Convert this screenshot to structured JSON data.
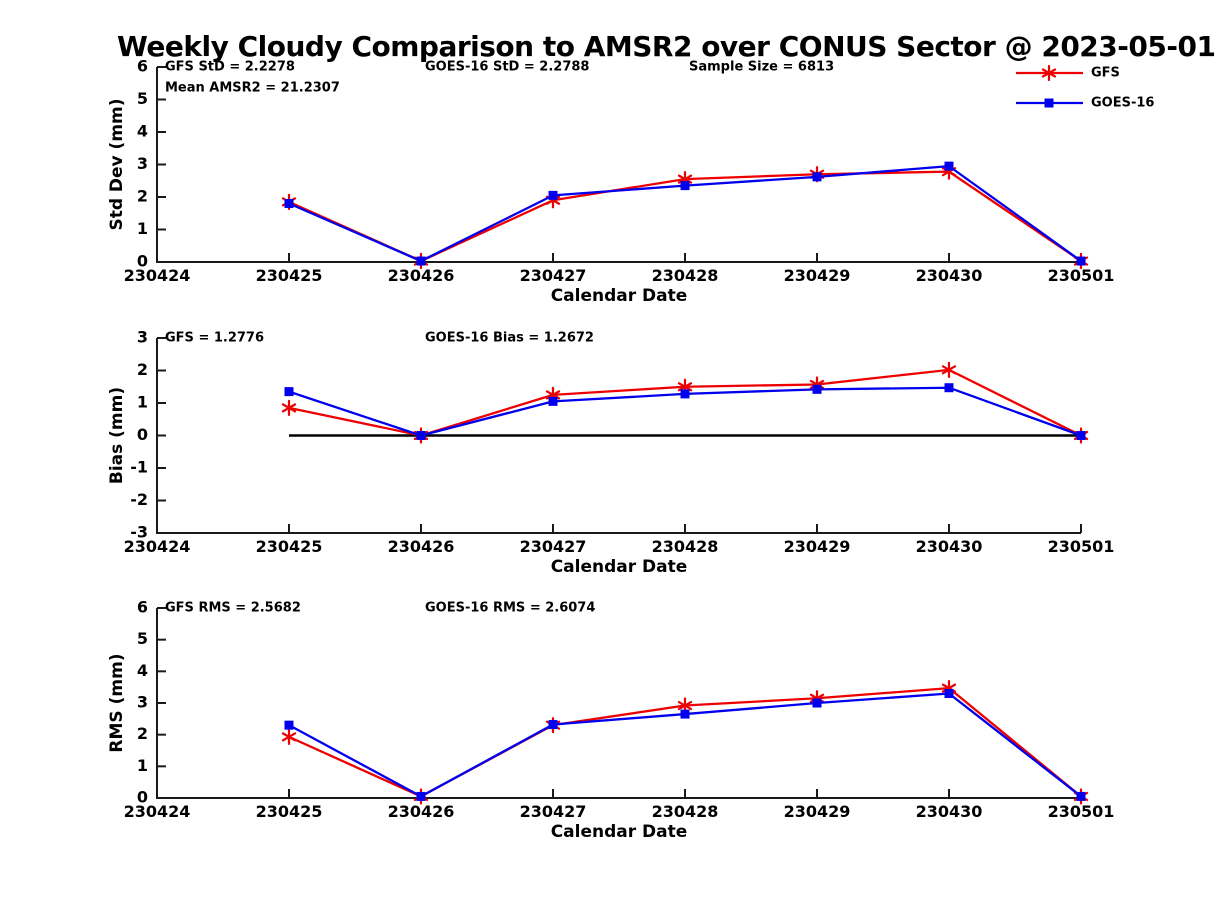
{
  "title": "Weekly Cloudy Comparison to AMSR2 over CONUS Sector @ 2023-05-01",
  "colors": {
    "gfs": "#ee0000",
    "goes16": "#0000ee",
    "axis": "#1a1a1a",
    "text": "#000000",
    "zero_line": "#000000"
  },
  "chart_data": [
    {
      "type": "line",
      "name": "std-dev",
      "ylabel": "Std Dev (mm)",
      "xlabel": "Calendar Date",
      "ylim": [
        0,
        6
      ],
      "ytick_step": 1,
      "grid": false,
      "legend_position": "top-right-outside",
      "categories": [
        "230424",
        "230425",
        "230426",
        "230427",
        "230428",
        "230429",
        "230430",
        "230501"
      ],
      "annotations": [
        {
          "text": "GFS StD = 2.2278",
          "col": 0,
          "row": 0
        },
        {
          "text": "Mean AMSR2 = 21.2307",
          "col": 0,
          "row": 1
        },
        {
          "text": "GOES-16 StD = 2.2788",
          "col": 1,
          "row": 0
        },
        {
          "text": "Sample Size = 6813",
          "col": 2,
          "row": 0
        }
      ],
      "show_legend": true,
      "zero_line": false,
      "series": [
        {
          "name": "GFS",
          "color": "#ee0000",
          "marker": "asterisk",
          "x": [
            "230425",
            "230426",
            "230427",
            "230428",
            "230429",
            "230430",
            "230501"
          ],
          "values": [
            1.85,
            0.03,
            1.9,
            2.55,
            2.7,
            2.78,
            0.03
          ]
        },
        {
          "name": "GOES-16",
          "color": "#0000ee",
          "marker": "square",
          "x": [
            "230425",
            "230426",
            "230427",
            "230428",
            "230429",
            "230430",
            "230501"
          ],
          "values": [
            1.8,
            0.03,
            2.05,
            2.35,
            2.62,
            2.95,
            0.03
          ]
        }
      ]
    },
    {
      "type": "line",
      "name": "bias",
      "ylabel": "Bias (mm)",
      "xlabel": "Calendar Date",
      "ylim": [
        -3,
        3
      ],
      "ytick_step": 1,
      "grid": false,
      "categories": [
        "230424",
        "230425",
        "230426",
        "230427",
        "230428",
        "230429",
        "230430",
        "230501"
      ],
      "annotations": [
        {
          "text": "GFS = 1.2776",
          "col": 0,
          "row": 0
        },
        {
          "text": "GOES-16 Bias  = 1.2672",
          "col": 1,
          "row": 0
        }
      ],
      "show_legend": false,
      "zero_line": true,
      "series": [
        {
          "name": "GFS",
          "color": "#ee0000",
          "marker": "asterisk",
          "x": [
            "230425",
            "230426",
            "230427",
            "230428",
            "230429",
            "230430",
            "230501"
          ],
          "values": [
            0.85,
            0.0,
            1.25,
            1.5,
            1.57,
            2.02,
            0.0
          ]
        },
        {
          "name": "GOES-16",
          "color": "#0000ee",
          "marker": "square",
          "x": [
            "230425",
            "230426",
            "230427",
            "230428",
            "230429",
            "230430",
            "230501"
          ],
          "values": [
            1.35,
            0.0,
            1.05,
            1.28,
            1.42,
            1.47,
            0.0
          ]
        }
      ]
    },
    {
      "type": "line",
      "name": "rms",
      "ylabel": "RMS (mm)",
      "xlabel": "Calendar Date",
      "ylim": [
        0,
        6
      ],
      "ytick_step": 1,
      "grid": false,
      "categories": [
        "230424",
        "230425",
        "230426",
        "230427",
        "230428",
        "230429",
        "230430",
        "230501"
      ],
      "annotations": [
        {
          "text": "GFS RMS = 2.5682",
          "col": 0,
          "row": 0
        },
        {
          "text": "GOES-16 RMS = 2.6074",
          "col": 1,
          "row": 0
        }
      ],
      "show_legend": false,
      "zero_line": false,
      "series": [
        {
          "name": "GFS",
          "color": "#ee0000",
          "marker": "asterisk",
          "x": [
            "230425",
            "230426",
            "230427",
            "230428",
            "230429",
            "230430",
            "230501"
          ],
          "values": [
            1.93,
            0.05,
            2.3,
            2.92,
            3.15,
            3.47,
            0.05
          ]
        },
        {
          "name": "GOES-16",
          "color": "#0000ee",
          "marker": "square",
          "x": [
            "230425",
            "230426",
            "230427",
            "230428",
            "230429",
            "230430",
            "230501"
          ],
          "values": [
            2.3,
            0.05,
            2.32,
            2.65,
            3.0,
            3.3,
            0.05
          ]
        }
      ]
    }
  ]
}
